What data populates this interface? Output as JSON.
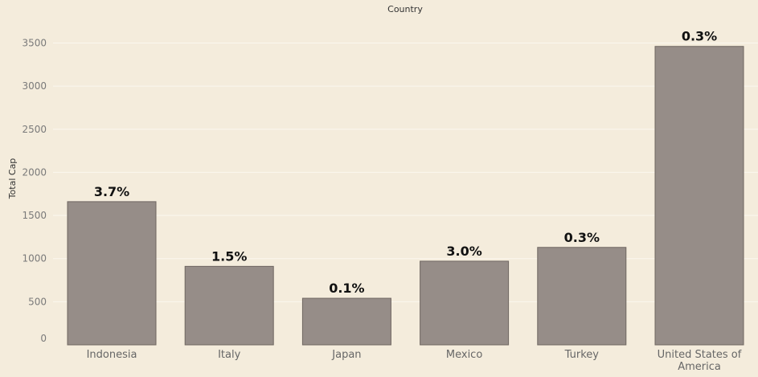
{
  "chart_data": {
    "type": "bar",
    "title": "Country",
    "xlabel": "",
    "ylabel": "Total Cap",
    "categories": [
      "Indonesia",
      "Italy",
      "Japan",
      "Mexico",
      "Turkey",
      "United States of America"
    ],
    "values": [
      1660,
      910,
      540,
      970,
      1130,
      3460
    ],
    "data_labels": [
      "3.7%",
      "1.5%",
      "0.1%",
      "3.0%",
      "0.3%",
      "0.3%"
    ],
    "ylim": [
      0,
      3750
    ],
    "yticks": [
      0,
      500,
      1000,
      1500,
      2000,
      2500,
      3000,
      3500
    ],
    "grid": true,
    "colors": {
      "background": "#f4ecdc",
      "bar_fill": "#968d88",
      "bar_stroke": "#6f6661",
      "grid": "#fbf7ef"
    }
  }
}
